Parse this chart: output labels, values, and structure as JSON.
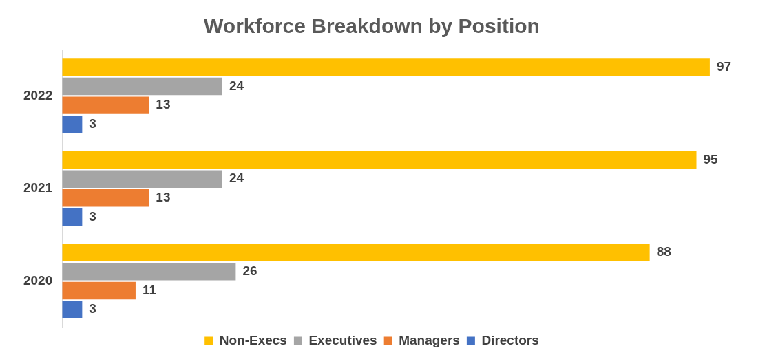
{
  "chart_data": {
    "type": "bar",
    "orientation": "horizontal",
    "title": "Workforce Breakdown by Position",
    "categories": [
      "2022",
      "2021",
      "2020"
    ],
    "series": [
      {
        "name": "Non-Execs",
        "color": "#ffc000",
        "values": [
          97,
          95,
          88
        ]
      },
      {
        "name": "Executives",
        "color": "#a5a5a5",
        "values": [
          24,
          24,
          26
        ]
      },
      {
        "name": "Managers",
        "color": "#ed7d31",
        "values": [
          13,
          13,
          11
        ]
      },
      {
        "name": "Directors",
        "color": "#4472c4",
        "values": [
          3,
          3,
          3
        ]
      }
    ],
    "data_labels": true,
    "legend": "bottom",
    "grid": false
  }
}
